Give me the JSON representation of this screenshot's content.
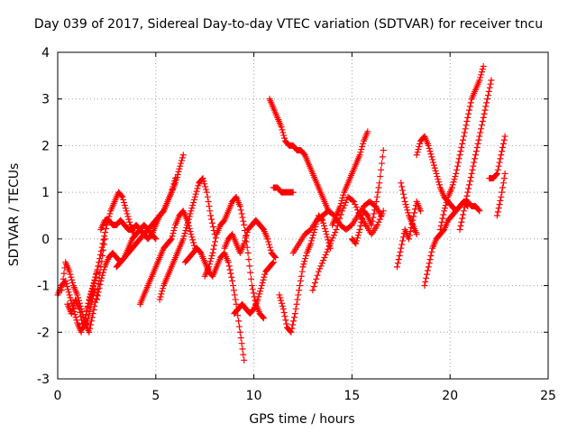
{
  "chart_data": {
    "type": "scatter",
    "title": "Day 039 of 2017, Sidereal Day-to-day VTEC variation (SDTVAR) for receiver tncu",
    "xlabel": "GPS time / hours",
    "ylabel": "SDTVAR / TECUs",
    "xlim": [
      0,
      25
    ],
    "ylim": [
      -3,
      4
    ],
    "xticks": [
      "0",
      "5",
      "10",
      "15",
      "20",
      "25"
    ],
    "yticks": [
      "-3",
      "-2",
      "-1",
      "0",
      "1",
      "2",
      "3",
      "4"
    ],
    "grid": true,
    "marker": "+",
    "color": "#ff0000",
    "series": [
      {
        "x": [
          0.0,
          0.2,
          0.4,
          0.6,
          0.8,
          1.0,
          1.2,
          1.4,
          1.6,
          1.8,
          2.0
        ],
        "y": [
          -1.2,
          -1.0,
          -0.9,
          -1.2,
          -1.5,
          -1.8,
          -2.0,
          -1.7,
          -1.3,
          -1.0,
          -0.7
        ]
      },
      {
        "x": [
          0.2,
          0.4,
          0.6,
          0.8,
          1.0,
          1.2,
          1.4,
          1.6,
          1.8,
          2.0,
          2.2,
          2.4
        ],
        "y": [
          -1.1,
          -0.5,
          -0.7,
          -1.0,
          -1.2,
          -1.5,
          -1.8,
          -2.0,
          -1.6,
          -1.2,
          -0.6,
          0.0
        ]
      },
      {
        "x": [
          0.5,
          0.7,
          0.9,
          1.1,
          1.3,
          1.5,
          1.7,
          1.9
        ],
        "y": [
          -1.4,
          -1.6,
          -1.3,
          -1.5,
          -1.9,
          -1.8,
          -1.4,
          -1.1
        ]
      },
      {
        "x": [
          1.5,
          1.7,
          1.9,
          2.1,
          2.3,
          2.5,
          2.7,
          2.9,
          3.1,
          3.3,
          3.5,
          3.7,
          3.9
        ],
        "y": [
          -1.5,
          -1.2,
          -0.9,
          -0.5,
          -0.1,
          0.3,
          0.6,
          0.8,
          1.0,
          0.9,
          0.6,
          0.3,
          0.1
        ]
      },
      {
        "x": [
          2.0,
          2.2,
          2.4,
          2.6,
          2.8,
          3.0,
          3.2,
          3.4,
          3.6,
          3.8,
          4.0,
          4.2,
          4.4,
          4.6,
          4.8,
          5.0
        ],
        "y": [
          -1.3,
          -0.9,
          -0.6,
          -0.4,
          -0.3,
          -0.4,
          -0.5,
          -0.4,
          -0.2,
          0.0,
          0.1,
          0.2,
          0.3,
          0.2,
          0.1,
          0.0
        ]
      },
      {
        "x": [
          2.2,
          2.4,
          2.6,
          2.8,
          3.0,
          3.2,
          3.4,
          3.6,
          3.8,
          4.0,
          4.2,
          4.4,
          4.6,
          4.8,
          5.0,
          5.2,
          5.4,
          5.6,
          5.8,
          6.0
        ],
        "y": [
          0.2,
          0.4,
          0.4,
          0.3,
          0.3,
          0.4,
          0.3,
          0.2,
          0.2,
          0.3,
          0.2,
          0.1,
          0.0,
          0.1,
          0.3,
          0.5,
          0.6,
          0.8,
          1.0,
          1.3
        ]
      },
      {
        "x": [
          3.0,
          3.2,
          3.4,
          3.6,
          3.8,
          4.0,
          4.2,
          4.4,
          4.6,
          4.8,
          5.0,
          5.2,
          5.4,
          5.6,
          5.8,
          6.0,
          6.2,
          6.4
        ],
        "y": [
          -0.6,
          -0.5,
          -0.4,
          -0.3,
          -0.2,
          -0.1,
          0.0,
          0.1,
          0.2,
          0.3,
          0.4,
          0.5,
          0.6,
          0.8,
          1.0,
          1.2,
          1.5,
          1.8
        ]
      },
      {
        "x": [
          4.2,
          4.4,
          4.6,
          4.8,
          5.0,
          5.2,
          5.4,
          5.6,
          5.8,
          6.0,
          6.2,
          6.4,
          6.6,
          6.8,
          7.0
        ],
        "y": [
          -1.4,
          -1.2,
          -1.0,
          -0.8,
          -0.6,
          -0.4,
          -0.2,
          -0.1,
          0.0,
          0.3,
          0.5,
          0.6,
          0.4,
          0.1,
          -0.2
        ]
      },
      {
        "x": [
          5.2,
          5.4,
          5.6,
          5.8,
          6.0,
          6.2,
          6.4,
          6.6,
          6.8,
          7.0,
          7.2,
          7.4,
          7.6,
          7.8,
          8.0
        ],
        "y": [
          -1.3,
          -1.0,
          -0.8,
          -0.6,
          -0.4,
          -0.2,
          0.0,
          0.3,
          0.6,
          0.9,
          1.2,
          1.3,
          1.0,
          0.5,
          0.1
        ]
      },
      {
        "x": [
          6.5,
          6.7,
          6.9,
          7.1,
          7.3,
          7.5,
          7.7,
          7.9,
          8.1,
          8.3,
          8.5,
          8.7,
          8.9,
          9.1,
          9.3,
          9.5
        ],
        "y": [
          -0.5,
          -0.4,
          -0.3,
          -0.2,
          -0.3,
          -0.5,
          -0.7,
          -0.8,
          -0.6,
          -0.4,
          -0.3,
          -0.5,
          -0.9,
          -1.4,
          -2.0,
          -2.6
        ]
      },
      {
        "x": [
          7.5,
          7.7,
          7.9,
          8.1,
          8.3,
          8.5,
          8.7,
          8.9,
          9.1,
          9.3,
          9.5,
          9.7,
          9.9,
          10.1,
          10.3,
          10.5
        ],
        "y": [
          -0.8,
          -0.6,
          -0.3,
          0.1,
          0.3,
          0.4,
          0.6,
          0.8,
          0.9,
          0.7,
          0.3,
          -0.3,
          -1.0,
          -1.4,
          -1.6,
          -1.7
        ]
      },
      {
        "x": [
          8.5,
          8.7,
          8.9,
          9.1,
          9.3,
          9.5,
          9.7,
          9.9,
          10.1,
          10.3,
          10.5,
          10.7,
          10.9,
          11.1
        ],
        "y": [
          -0.2,
          0.0,
          0.1,
          -0.1,
          -0.3,
          -0.1,
          0.2,
          0.3,
          0.4,
          0.3,
          0.2,
          0.0,
          -0.3,
          -0.4
        ]
      },
      {
        "x": [
          9.0,
          9.2,
          9.4,
          9.6,
          9.8,
          10.0,
          10.2,
          10.4,
          10.6,
          10.8,
          11.0
        ],
        "y": [
          -1.6,
          -1.5,
          -1.4,
          -1.5,
          -1.6,
          -1.5,
          -1.3,
          -1.0,
          -0.7,
          -0.6,
          -0.5
        ]
      },
      {
        "x": [
          10.8,
          11.0,
          11.2,
          11.4,
          11.6,
          11.8,
          12.0,
          12.2,
          12.4,
          12.6,
          12.8,
          13.0,
          13.2,
          13.4,
          13.6,
          13.8
        ],
        "y": [
          3.0,
          2.8,
          2.6,
          2.4,
          2.1,
          2.0,
          2.0,
          1.9,
          1.9,
          1.8,
          1.6,
          1.4,
          1.2,
          1.0,
          0.8,
          0.6
        ]
      },
      {
        "x": [
          11.0,
          11.2,
          11.4,
          11.6,
          11.8,
          12.0
        ],
        "y": [
          1.1,
          1.1,
          1.0,
          1.0,
          1.0,
          1.0
        ]
      },
      {
        "x": [
          11.3,
          11.5,
          11.7,
          11.9,
          12.1,
          12.3,
          12.5,
          12.7,
          12.9,
          13.1,
          13.3,
          13.5,
          13.7,
          13.9
        ],
        "y": [
          -1.2,
          -1.5,
          -1.9,
          -2.0,
          -1.6,
          -1.1,
          -0.6,
          -0.3,
          -0.1,
          0.2,
          0.5,
          0.4,
          0.1,
          -0.2
        ]
      },
      {
        "x": [
          12.0,
          12.3,
          12.6,
          12.9,
          13.2,
          13.5,
          13.8,
          14.1,
          14.4,
          14.7,
          15.0,
          15.3,
          15.6,
          15.9,
          16.2,
          16.5
        ],
        "y": [
          -0.3,
          -0.1,
          0.1,
          0.2,
          0.4,
          0.5,
          0.6,
          0.5,
          0.3,
          0.2,
          0.3,
          0.5,
          0.7,
          0.8,
          0.7,
          0.5
        ]
      },
      {
        "x": [
          13.0,
          13.3,
          13.6,
          13.9,
          14.2,
          14.5,
          14.8,
          15.1,
          15.4,
          15.7,
          16.0,
          16.3,
          16.6
        ],
        "y": [
          -1.1,
          -0.7,
          -0.4,
          -0.1,
          0.2,
          0.6,
          0.9,
          0.8,
          0.5,
          0.3,
          0.1,
          0.3,
          0.6
        ]
      },
      {
        "x": [
          14.0,
          14.2,
          14.4,
          14.6,
          14.8,
          15.0,
          15.2,
          15.4,
          15.6,
          15.8
        ],
        "y": [
          0.3,
          0.5,
          0.7,
          1.0,
          1.2,
          1.4,
          1.6,
          1.8,
          2.1,
          2.3
        ]
      },
      {
        "x": [
          15.0,
          15.2,
          15.4,
          15.6,
          15.8,
          16.0,
          16.2,
          16.4,
          16.6
        ],
        "y": [
          0.0,
          -0.1,
          0.2,
          0.6,
          0.5,
          0.3,
          0.7,
          1.2,
          1.9
        ]
      },
      {
        "x": [
          17.5,
          17.7,
          17.9,
          18.1,
          18.3
        ],
        "y": [
          1.2,
          0.8,
          0.5,
          0.3,
          0.1
        ]
      },
      {
        "x": [
          17.3,
          17.5,
          17.7,
          17.9,
          18.1,
          18.3,
          18.5
        ],
        "y": [
          -0.6,
          -0.2,
          0.2,
          0.0,
          0.4,
          0.8,
          0.6
        ]
      },
      {
        "x": [
          18.3,
          18.5,
          18.7,
          18.9,
          19.1,
          19.3,
          19.5,
          19.7,
          19.9,
          20.1,
          20.3,
          20.5,
          20.7,
          20.9
        ],
        "y": [
          1.8,
          2.1,
          2.2,
          2.0,
          1.7,
          1.4,
          1.1,
          0.9,
          0.8,
          0.7,
          0.6,
          0.7,
          0.8,
          0.7
        ]
      },
      {
        "x": [
          18.7,
          18.9,
          19.1,
          19.3,
          19.5,
          19.7,
          19.9,
          20.1,
          20.3,
          20.5,
          20.7,
          20.9,
          21.1,
          21.3,
          21.5
        ],
        "y": [
          -1.0,
          -0.6,
          -0.2,
          0.0,
          0.1,
          0.2,
          0.4,
          0.5,
          0.6,
          0.7,
          0.8,
          0.8,
          0.7,
          0.7,
          0.6
        ]
      },
      {
        "x": [
          19.5,
          19.7,
          19.9,
          20.1,
          20.3,
          20.5,
          20.7,
          20.9,
          21.1,
          21.3,
          21.5,
          21.7
        ],
        "y": [
          0.2,
          0.6,
          0.9,
          1.1,
          1.4,
          1.8,
          2.2,
          2.6,
          3.0,
          3.2,
          3.4,
          3.7
        ]
      },
      {
        "x": [
          20.5,
          20.7,
          20.9,
          21.1,
          21.3,
          21.5,
          21.7,
          21.9,
          22.1
        ],
        "y": [
          0.2,
          0.6,
          1.0,
          1.4,
          1.8,
          2.2,
          2.6,
          3.0,
          3.4
        ]
      },
      {
        "x": [
          22.0,
          22.2,
          22.4,
          22.6,
          22.8
        ],
        "y": [
          1.3,
          1.3,
          1.4,
          1.8,
          2.2
        ]
      },
      {
        "x": [
          22.4,
          22.6,
          22.8
        ],
        "y": [
          0.5,
          0.9,
          1.4
        ]
      }
    ]
  }
}
